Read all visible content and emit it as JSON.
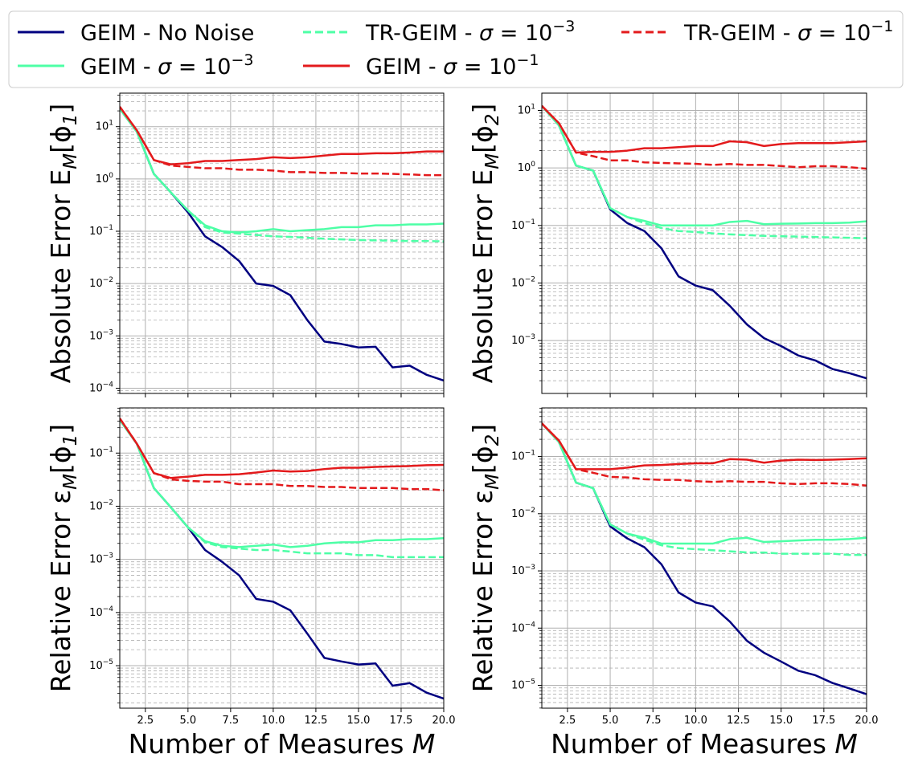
{
  "legend": {
    "location": "top",
    "columns": 3,
    "entries": [
      {
        "label": "GEIM - No Noise",
        "color": "#000080",
        "dash": "solid"
      },
      {
        "label": "GEIM - σ = 10⁻³",
        "color": "#4dffa6",
        "dash": "solid"
      },
      {
        "label": "TR-GEIM - σ = 10⁻³",
        "color": "#4dffa6",
        "dash": "dashed"
      },
      {
        "label": "GEIM - σ = 10⁻¹",
        "color": "#e31a1c",
        "dash": "solid"
      },
      {
        "label": "TR-GEIM - σ = 10⁻¹",
        "color": "#e31a1c",
        "dash": "dashed"
      }
    ]
  },
  "chart_data": [
    {
      "type": "line",
      "panel": "top-left",
      "ylabel": "Absolute Error E_M[ϕ_1]",
      "xlabel": "",
      "yscale": "log",
      "xlim": [
        1,
        20
      ],
      "ylim_log10": [
        -4.1,
        1.64
      ],
      "xticks": [
        2.5,
        5.0,
        7.5,
        10.0,
        12.5,
        15.0,
        17.5,
        20.0
      ],
      "yticks_exp": [
        -4,
        -3,
        -2,
        -1,
        0,
        1
      ],
      "grid": true,
      "x": [
        1,
        2,
        3,
        4,
        5,
        6,
        7,
        8,
        9,
        10,
        11,
        12,
        13,
        14,
        15,
        16,
        17,
        18,
        19,
        20
      ],
      "series": [
        {
          "name": "GEIM - No Noise",
          "color": "#000080",
          "dash": "solid",
          "values": [
            22,
            8,
            1.25,
            0.55,
            0.23,
            0.08,
            0.05,
            0.027,
            0.01,
            0.009,
            0.006,
            0.002,
            0.00078,
            0.0007,
            0.0006,
            0.00062,
            0.00025,
            0.00027,
            0.00018,
            0.00014
          ]
        },
        {
          "name": "GEIM - σ = 10⁻³",
          "color": "#4dffa6",
          "dash": "solid",
          "values": [
            22,
            8,
            1.25,
            0.55,
            0.25,
            0.13,
            0.1,
            0.095,
            0.1,
            0.11,
            0.1,
            0.105,
            0.11,
            0.12,
            0.12,
            0.13,
            0.13,
            0.135,
            0.135,
            0.14
          ]
        },
        {
          "name": "TR-GEIM - σ = 10⁻³",
          "color": "#4dffa6",
          "dash": "dashed",
          "values": [
            22,
            8,
            1.25,
            0.55,
            0.25,
            0.12,
            0.095,
            0.09,
            0.085,
            0.08,
            0.078,
            0.075,
            0.072,
            0.07,
            0.068,
            0.067,
            0.066,
            0.065,
            0.065,
            0.064
          ]
        },
        {
          "name": "GEIM - σ = 10⁻¹",
          "color": "#e31a1c",
          "dash": "solid",
          "values": [
            24,
            8.5,
            2.3,
            1.9,
            2.0,
            2.2,
            2.2,
            2.3,
            2.4,
            2.6,
            2.5,
            2.6,
            2.8,
            3.0,
            3.0,
            3.1,
            3.1,
            3.2,
            3.35,
            3.35
          ]
        },
        {
          "name": "TR-GEIM - σ = 10⁻¹",
          "color": "#e31a1c",
          "dash": "dashed",
          "values": [
            24,
            8.5,
            2.3,
            1.8,
            1.7,
            1.6,
            1.6,
            1.5,
            1.5,
            1.45,
            1.35,
            1.35,
            1.3,
            1.3,
            1.27,
            1.27,
            1.25,
            1.22,
            1.18,
            1.18
          ]
        }
      ]
    },
    {
      "type": "line",
      "panel": "top-right",
      "ylabel": "Absolute Error E_M[ϕ_2]",
      "xlabel": "",
      "yscale": "log",
      "xlim": [
        1,
        20
      ],
      "ylim_log10": [
        -3.92,
        1.3
      ],
      "xticks": [
        2.5,
        5.0,
        7.5,
        10.0,
        12.5,
        15.0,
        17.5,
        20.0
      ],
      "yticks_exp": [
        -3,
        -2,
        -1,
        0,
        1
      ],
      "grid": true,
      "x": [
        1,
        2,
        3,
        4,
        5,
        6,
        7,
        8,
        9,
        10,
        11,
        12,
        13,
        14,
        15,
        16,
        17,
        18,
        19,
        20
      ],
      "series": [
        {
          "name": "GEIM - No Noise",
          "color": "#000080",
          "dash": "solid",
          "values": [
            12,
            5.5,
            1.1,
            0.9,
            0.19,
            0.11,
            0.08,
            0.04,
            0.013,
            0.009,
            0.0075,
            0.004,
            0.0019,
            0.0011,
            0.0008,
            0.00055,
            0.00045,
            0.00032,
            0.00027,
            0.00022
          ]
        },
        {
          "name": "GEIM - σ = 10⁻³",
          "color": "#4dffa6",
          "dash": "solid",
          "values": [
            12,
            5.5,
            1.1,
            0.9,
            0.2,
            0.14,
            0.12,
            0.1,
            0.1,
            0.1,
            0.1,
            0.115,
            0.12,
            0.105,
            0.107,
            0.108,
            0.11,
            0.11,
            0.112,
            0.118
          ]
        },
        {
          "name": "TR-GEIM - σ = 10⁻³",
          "color": "#4dffa6",
          "dash": "dashed",
          "values": [
            12,
            5.5,
            1.1,
            0.9,
            0.2,
            0.14,
            0.11,
            0.09,
            0.08,
            0.077,
            0.073,
            0.07,
            0.068,
            0.066,
            0.065,
            0.064,
            0.063,
            0.062,
            0.061,
            0.06
          ]
        },
        {
          "name": "GEIM - σ = 10⁻¹",
          "color": "#e31a1c",
          "dash": "solid",
          "values": [
            12,
            6.0,
            1.85,
            1.9,
            1.9,
            2.0,
            2.2,
            2.2,
            2.3,
            2.4,
            2.4,
            2.9,
            2.8,
            2.4,
            2.6,
            2.7,
            2.7,
            2.7,
            2.8,
            2.9
          ]
        },
        {
          "name": "TR-GEIM - σ = 10⁻¹",
          "color": "#e31a1c",
          "dash": "dashed",
          "values": [
            12,
            6.0,
            1.85,
            1.6,
            1.35,
            1.35,
            1.25,
            1.22,
            1.2,
            1.18,
            1.13,
            1.17,
            1.13,
            1.13,
            1.08,
            1.03,
            1.07,
            1.07,
            1.03,
            0.97
          ]
        }
      ]
    },
    {
      "type": "line",
      "panel": "bottom-left",
      "ylabel": "Relative Error ε_M[ϕ_1]",
      "xlabel": "Number of Measures M",
      "yscale": "log",
      "xlim": [
        1,
        20
      ],
      "ylim_log10": [
        -5.8,
        -0.15
      ],
      "xticks": [
        2.5,
        5.0,
        7.5,
        10.0,
        12.5,
        15.0,
        17.5,
        20.0
      ],
      "yticks_exp": [
        -5,
        -4,
        -3,
        -2,
        -1
      ],
      "grid": true,
      "x": [
        1,
        2,
        3,
        4,
        5,
        6,
        7,
        8,
        9,
        10,
        11,
        12,
        13,
        14,
        15,
        16,
        17,
        18,
        19,
        20
      ],
      "series": [
        {
          "name": "GEIM - No Noise",
          "color": "#000080",
          "dash": "solid",
          "values": [
            0.42,
            0.15,
            0.022,
            0.0095,
            0.004,
            0.0015,
            0.0009,
            0.0005,
            0.00018,
            0.00016,
            0.00011,
            4e-05,
            1.4e-05,
            1.2e-05,
            1.05e-05,
            1.1e-05,
            4.2e-06,
            4.7e-06,
            3.1e-06,
            2.4e-06
          ]
        },
        {
          "name": "GEIM - σ = 10⁻³",
          "color": "#4dffa6",
          "dash": "solid",
          "values": [
            0.42,
            0.15,
            0.022,
            0.0095,
            0.004,
            0.0022,
            0.0018,
            0.0017,
            0.0018,
            0.0019,
            0.0017,
            0.0018,
            0.002,
            0.0021,
            0.0021,
            0.0023,
            0.0023,
            0.0024,
            0.0024,
            0.0025
          ]
        },
        {
          "name": "TR-GEIM - σ = 10⁻³",
          "color": "#4dffa6",
          "dash": "dashed",
          "values": [
            0.42,
            0.15,
            0.022,
            0.0095,
            0.004,
            0.0021,
            0.0017,
            0.0016,
            0.0015,
            0.0015,
            0.0014,
            0.0013,
            0.0013,
            0.0013,
            0.0012,
            0.0012,
            0.0011,
            0.0011,
            0.0011,
            0.0011
          ]
        },
        {
          "name": "GEIM - σ = 10⁻¹",
          "color": "#e31a1c",
          "dash": "solid",
          "values": [
            0.45,
            0.15,
            0.042,
            0.034,
            0.036,
            0.039,
            0.039,
            0.04,
            0.043,
            0.047,
            0.045,
            0.046,
            0.05,
            0.053,
            0.053,
            0.055,
            0.056,
            0.057,
            0.059,
            0.06
          ]
        },
        {
          "name": "TR-GEIM - σ = 10⁻¹",
          "color": "#e31a1c",
          "dash": "dashed",
          "values": [
            0.45,
            0.15,
            0.042,
            0.032,
            0.03,
            0.029,
            0.029,
            0.026,
            0.026,
            0.026,
            0.024,
            0.024,
            0.023,
            0.023,
            0.022,
            0.022,
            0.022,
            0.021,
            0.021,
            0.02
          ]
        }
      ]
    },
    {
      "type": "line",
      "panel": "bottom-right",
      "ylabel": "Relative Error ε_M[ϕ_2]",
      "xlabel": "Number of Measures M",
      "yscale": "log",
      "xlim": [
        1,
        20
      ],
      "ylim_log10": [
        -5.4,
        -0.15
      ],
      "xticks": [
        2.5,
        5.0,
        7.5,
        10.0,
        12.5,
        15.0,
        17.5,
        20.0
      ],
      "yticks_exp": [
        -5,
        -4,
        -3,
        -2,
        -1
      ],
      "grid": true,
      "x": [
        1,
        2,
        3,
        4,
        5,
        6,
        7,
        8,
        9,
        10,
        11,
        12,
        13,
        14,
        15,
        16,
        17,
        18,
        19,
        20
      ],
      "series": [
        {
          "name": "GEIM - No Noise",
          "color": "#000080",
          "dash": "solid",
          "values": [
            0.38,
            0.18,
            0.035,
            0.028,
            0.006,
            0.0037,
            0.0026,
            0.0013,
            0.00042,
            0.00028,
            0.00024,
            0.00013,
            6e-05,
            3.7e-05,
            2.6e-05,
            1.8e-05,
            1.5e-05,
            1.1e-05,
            8.8e-06,
            7e-06
          ]
        },
        {
          "name": "GEIM - σ = 10⁻³",
          "color": "#4dffa6",
          "dash": "solid",
          "values": [
            0.38,
            0.18,
            0.035,
            0.028,
            0.0065,
            0.0045,
            0.0038,
            0.003,
            0.003,
            0.003,
            0.003,
            0.0036,
            0.0038,
            0.0032,
            0.0033,
            0.0034,
            0.0035,
            0.0035,
            0.0036,
            0.0038
          ]
        },
        {
          "name": "TR-GEIM - σ = 10⁻³",
          "color": "#4dffa6",
          "dash": "dashed",
          "values": [
            0.38,
            0.18,
            0.035,
            0.028,
            0.0065,
            0.0045,
            0.0035,
            0.0028,
            0.0025,
            0.0024,
            0.0023,
            0.0022,
            0.0021,
            0.0021,
            0.002,
            0.002,
            0.002,
            0.002,
            0.0019,
            0.0019
          ]
        },
        {
          "name": "GEIM - σ = 10⁻¹",
          "color": "#e31a1c",
          "dash": "solid",
          "values": [
            0.38,
            0.19,
            0.06,
            0.06,
            0.06,
            0.064,
            0.07,
            0.071,
            0.074,
            0.076,
            0.076,
            0.09,
            0.088,
            0.078,
            0.085,
            0.088,
            0.087,
            0.088,
            0.09,
            0.093
          ]
        },
        {
          "name": "TR-GEIM - σ = 10⁻¹",
          "color": "#e31a1c",
          "dash": "dashed",
          "values": [
            0.38,
            0.19,
            0.06,
            0.052,
            0.044,
            0.043,
            0.04,
            0.039,
            0.039,
            0.037,
            0.036,
            0.037,
            0.036,
            0.036,
            0.034,
            0.033,
            0.034,
            0.034,
            0.033,
            0.031
          ]
        }
      ]
    }
  ]
}
